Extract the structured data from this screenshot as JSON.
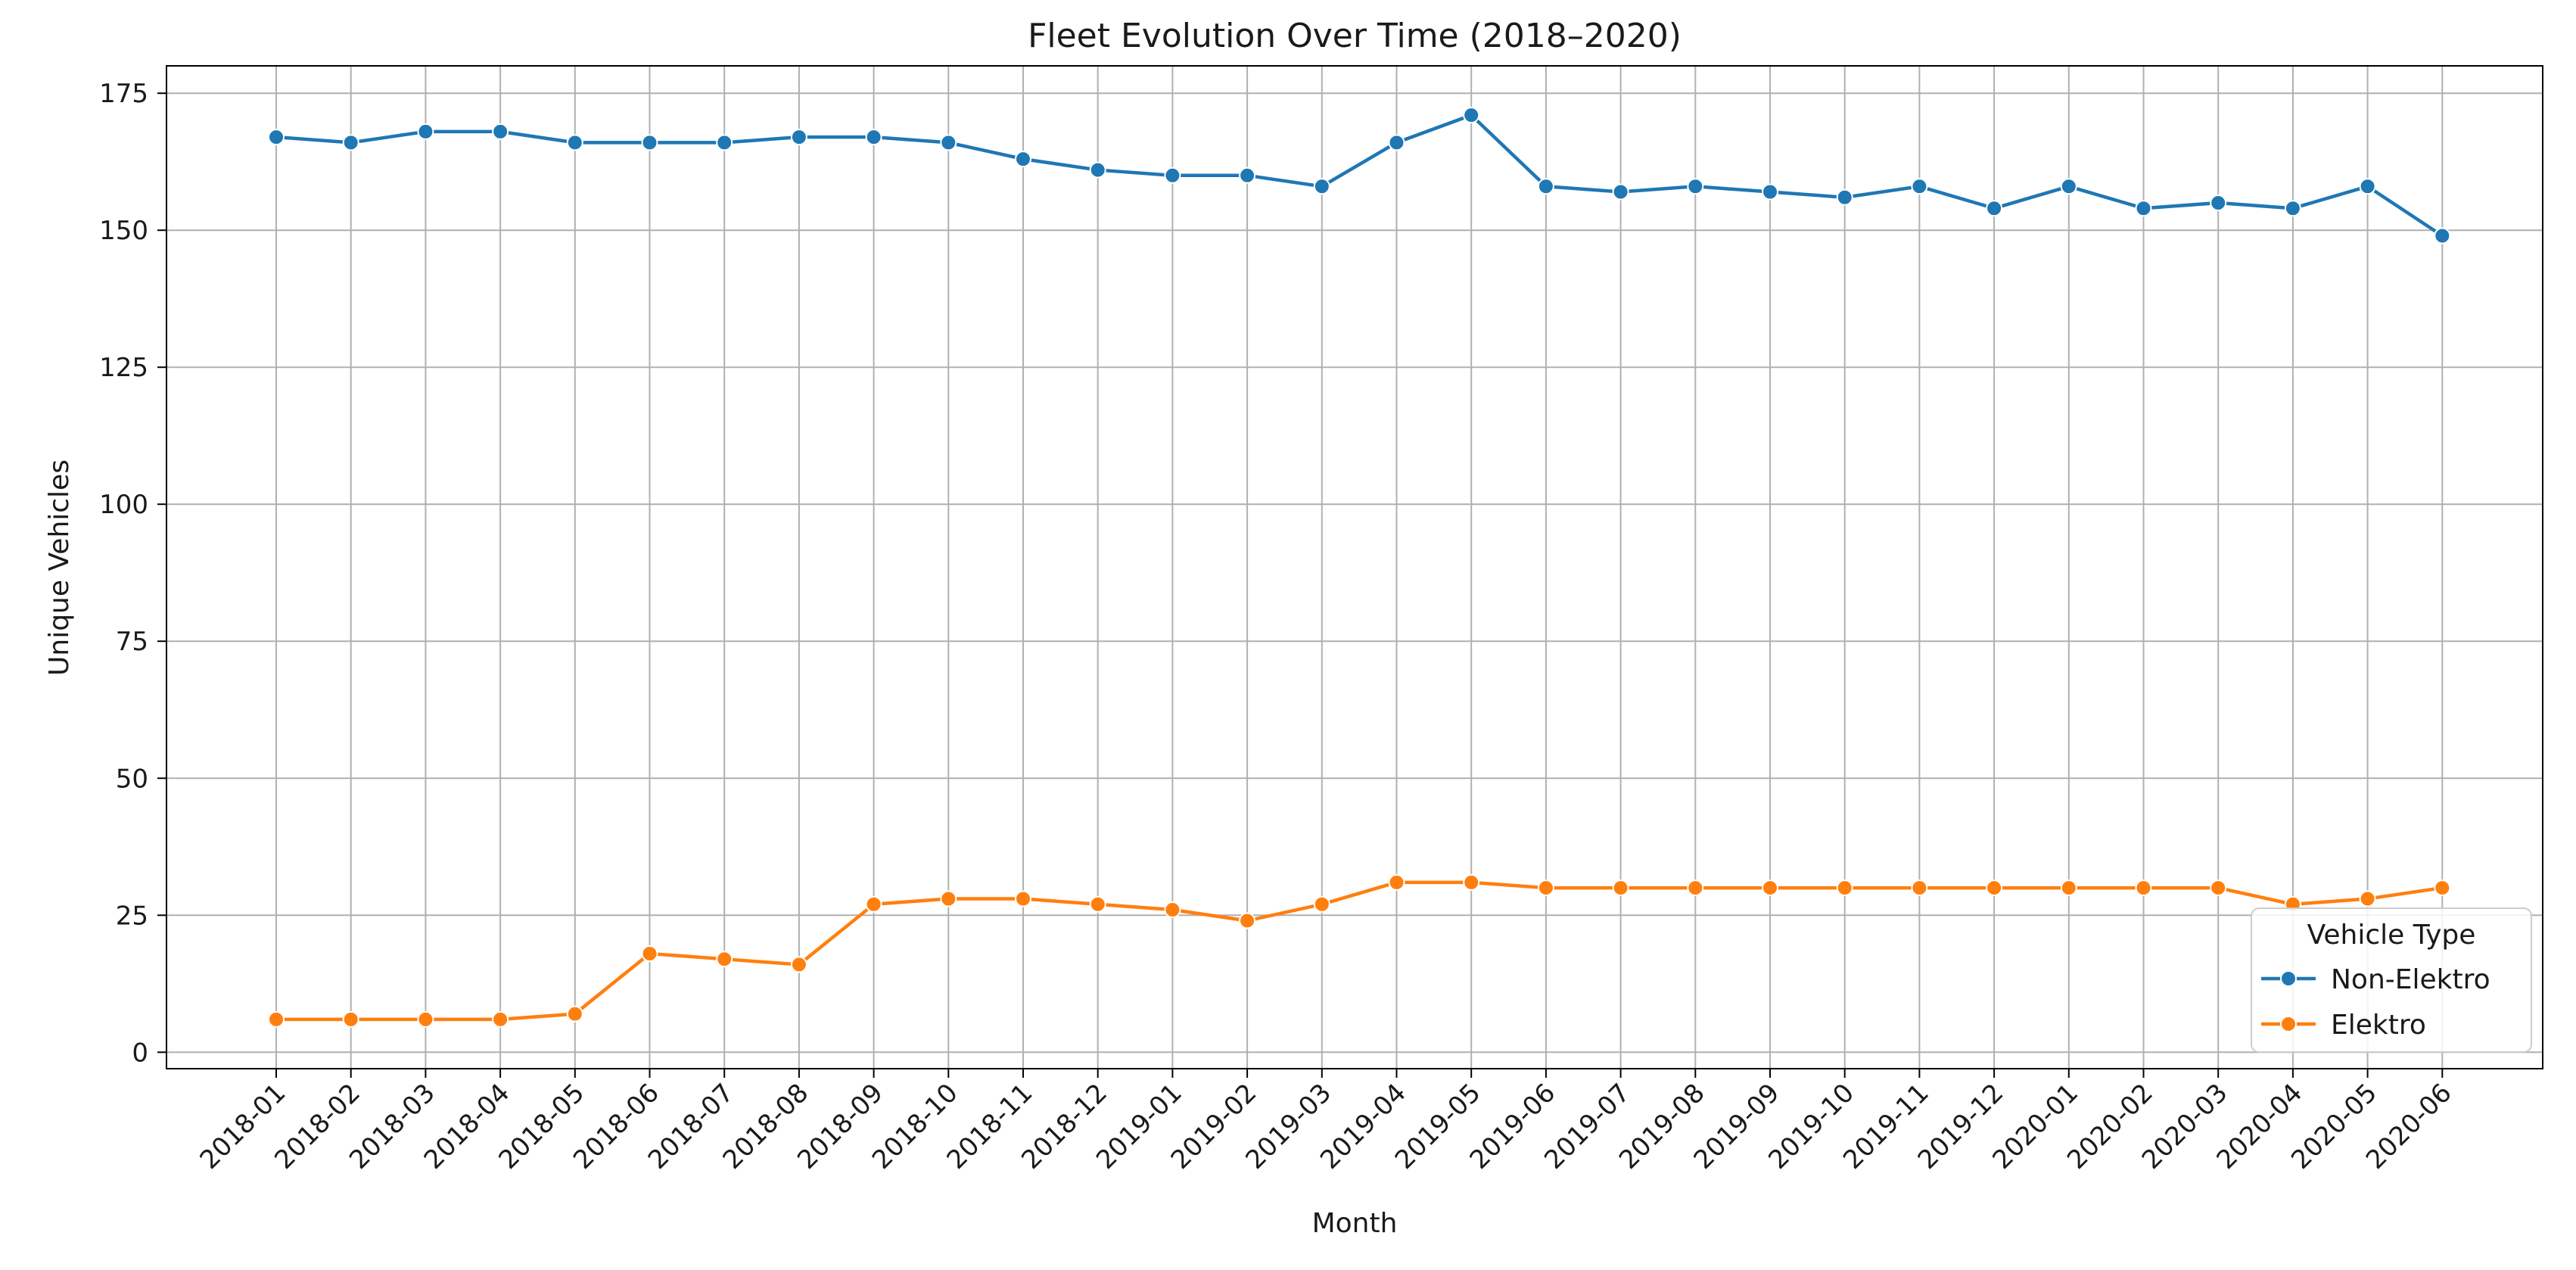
{
  "chart_data": {
    "type": "line",
    "title": "Fleet Evolution Over Time (2018–2020)",
    "xlabel": "Month",
    "ylabel": "Unique Vehicles",
    "ylim": [
      -3,
      180
    ],
    "yticks": [
      0,
      25,
      50,
      75,
      100,
      125,
      150,
      175
    ],
    "grid": true,
    "legend": {
      "title": "Vehicle Type",
      "placement": "lower-right"
    },
    "categories": [
      "2018-01",
      "2018-02",
      "2018-03",
      "2018-04",
      "2018-05",
      "2018-06",
      "2018-07",
      "2018-08",
      "2018-09",
      "2018-10",
      "2018-11",
      "2018-12",
      "2019-01",
      "2019-02",
      "2019-03",
      "2019-04",
      "2019-05",
      "2019-06",
      "2019-07",
      "2019-08",
      "2019-09",
      "2019-10",
      "2019-11",
      "2019-12",
      "2020-01",
      "2020-02",
      "2020-03",
      "2020-04",
      "2020-05",
      "2020-06"
    ],
    "series": [
      {
        "name": "Non-Elektro",
        "color": "#1f77b4",
        "values": [
          167,
          166,
          168,
          168,
          166,
          166,
          166,
          167,
          167,
          166,
          163,
          161,
          160,
          160,
          158,
          166,
          171,
          158,
          157,
          158,
          157,
          156,
          158,
          154,
          158,
          154,
          155,
          154,
          158,
          149
        ]
      },
      {
        "name": "Elektro",
        "color": "#ff7f0e",
        "values": [
          6,
          6,
          6,
          6,
          7,
          18,
          17,
          16,
          27,
          28,
          28,
          27,
          26,
          24,
          27,
          31,
          31,
          30,
          30,
          30,
          30,
          30,
          30,
          30,
          30,
          30,
          30,
          27,
          28,
          30
        ]
      }
    ]
  }
}
